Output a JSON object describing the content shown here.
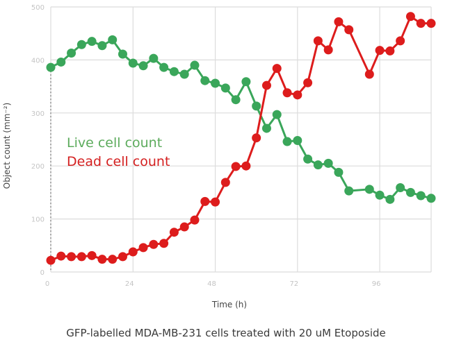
{
  "chart_data": {
    "type": "line",
    "title": "",
    "caption": "GFP-labelled MDA-MB-231 cells treated with 20 uM Etoposide",
    "xlabel": "Time (h)",
    "ylabel": "Object count (mm⁻²)",
    "xlim": [
      0,
      111
    ],
    "ylim": [
      0,
      500
    ],
    "xticks": [
      0,
      24,
      48,
      72,
      96
    ],
    "yticks": [
      0,
      100,
      200,
      300,
      400,
      500
    ],
    "xtick_labels": [
      "0",
      "24",
      "48",
      "72",
      "96"
    ],
    "ytick_labels": [
      "0",
      "100",
      "200",
      "300",
      "400",
      "500"
    ],
    "grid": true,
    "legend_position": "center-left",
    "x": [
      0,
      3,
      6,
      9,
      12,
      15,
      18,
      21,
      24,
      27,
      30,
      33,
      36,
      39,
      42,
      45,
      48,
      51,
      54,
      57,
      60,
      63,
      66,
      69,
      72,
      75,
      78,
      81,
      84,
      87,
      93,
      96,
      99,
      102,
      105,
      108,
      111
    ],
    "series": [
      {
        "name": "Live cell count",
        "color": "#3aa65a",
        "legend_color": "#5cab5c",
        "values": [
          386,
          396,
          413,
          429,
          435,
          427,
          438,
          411,
          394,
          389,
          403,
          386,
          378,
          373,
          390,
          361,
          356,
          347,
          325,
          359,
          313,
          271,
          297,
          246,
          248,
          213,
          202,
          205,
          188,
          153,
          156,
          145,
          137,
          159,
          150,
          144,
          139
        ]
      },
      {
        "name": "Dead cell count",
        "color": "#dd1c1c",
        "legend_color": "#d42020",
        "values": [
          22,
          30,
          29,
          29,
          31,
          24,
          24,
          29,
          38,
          46,
          52,
          54,
          75,
          85,
          98,
          133,
          132,
          169,
          199,
          200,
          253,
          352,
          384,
          338,
          334,
          357,
          436,
          419,
          472,
          457,
          373,
          418,
          417,
          436,
          482,
          469,
          469
        ]
      }
    ]
  }
}
